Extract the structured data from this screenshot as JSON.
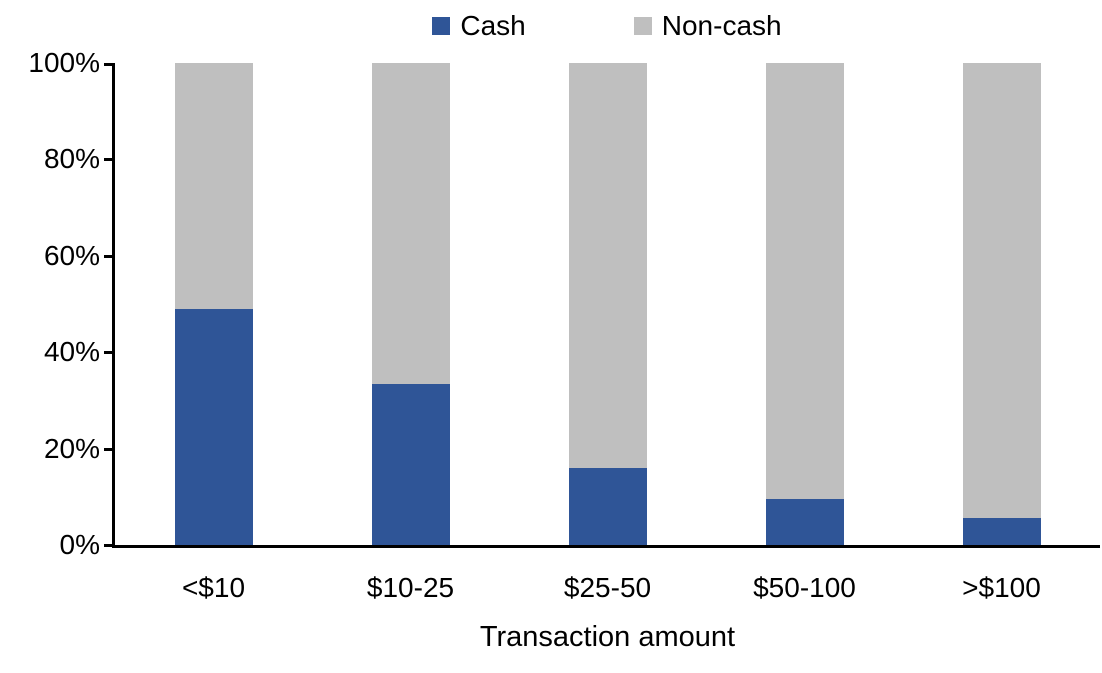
{
  "chart_data": {
    "type": "bar",
    "stacked": true,
    "percent_stacked": true,
    "title": "",
    "xlabel": "Transaction amount",
    "ylabel": "",
    "categories": [
      "<$10",
      "$10-25",
      "$25-50",
      "$50-100",
      ">$100"
    ],
    "series": [
      {
        "name": "Cash",
        "color": "#2F5597",
        "values": [
          49,
          33.5,
          16,
          9.5,
          5.5
        ]
      },
      {
        "name": "Non-cash",
        "color": "#BFBFBF",
        "values": [
          51,
          66.5,
          84,
          90.5,
          94.5
        ]
      }
    ],
    "ylim": [
      0,
      100
    ],
    "yticks": [
      "0%",
      "20%",
      "40%",
      "60%",
      "80%",
      "100%"
    ],
    "legend_position": "top",
    "grid": false,
    "axis_color": "#000000",
    "text_color": "#000000"
  }
}
